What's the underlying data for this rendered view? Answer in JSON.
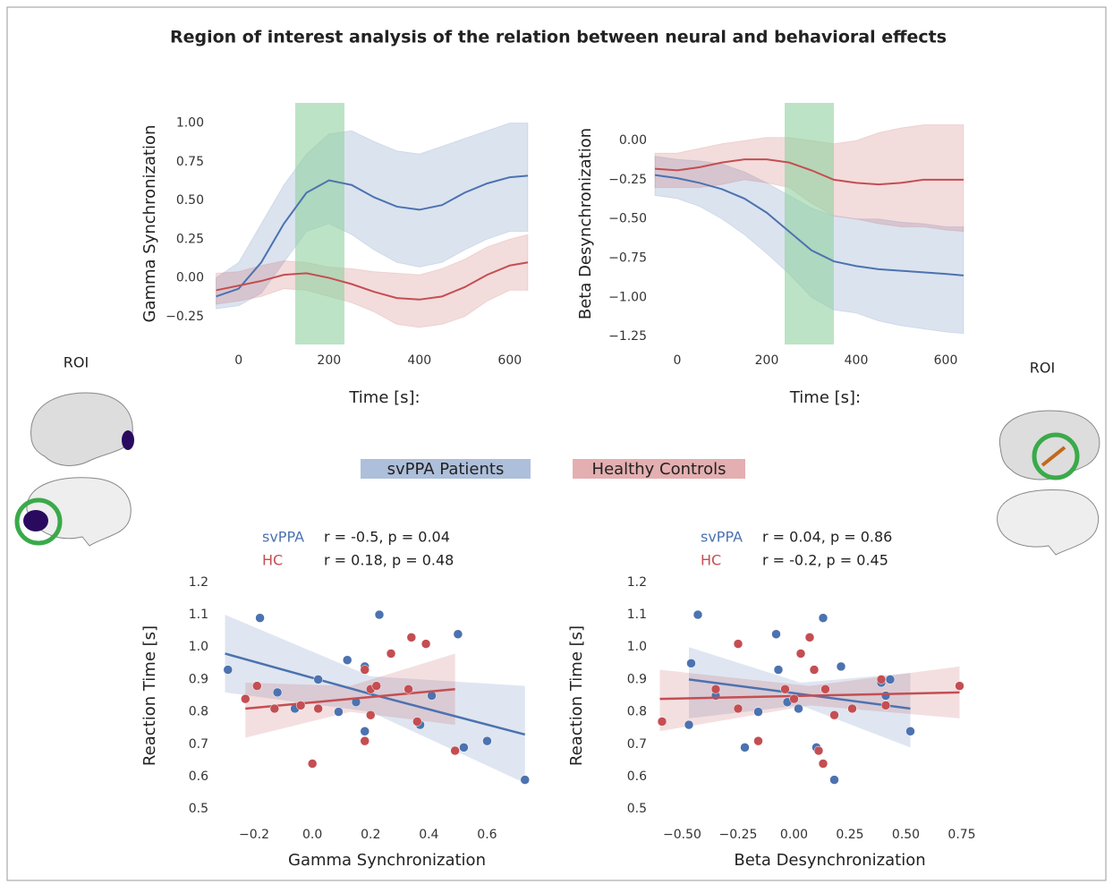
{
  "title": "Region of interest analysis of the relation between neural and behavioral effects",
  "roi_labels": [
    "ROI",
    "ROI"
  ],
  "chart_data": [
    {
      "type": "line",
      "xlabel": "Time [s]:",
      "ylabel": "Gamma Synchronization",
      "xlim": [
        -53,
        640
      ],
      "ylim": [
        -0.43,
        1.13
      ],
      "xticks": [
        0,
        200,
        400,
        600
      ],
      "yticks": [
        {
          "value": 1,
          "label": "1.00"
        },
        {
          "value": 0.75,
          "label": "0.75"
        },
        {
          "value": 0.5,
          "label": "0.50"
        },
        {
          "value": 0.25,
          "label": "0.25"
        },
        {
          "value": 0,
          "label": "0.00"
        },
        {
          "value": -0.25,
          "label": "−0.25"
        }
      ],
      "highlight": [
        125,
        234
      ],
      "highlight_color": "#8fd19e",
      "x": [
        -50,
        0,
        50,
        100,
        150,
        200,
        250,
        300,
        350,
        400,
        450,
        500,
        550,
        600,
        640
      ],
      "series": [
        {
          "name": "svPPA Patients",
          "color": "#4c72b0",
          "values": [
            -0.12,
            -0.07,
            0.1,
            0.35,
            0.55,
            0.63,
            0.6,
            0.52,
            0.46,
            0.44,
            0.47,
            0.55,
            0.61,
            0.65,
            0.66
          ],
          "upper": [
            0.0,
            0.1,
            0.35,
            0.6,
            0.8,
            0.93,
            0.95,
            0.88,
            0.82,
            0.8,
            0.85,
            0.9,
            0.95,
            1.0,
            1.0
          ],
          "lower": [
            -0.2,
            -0.18,
            -0.1,
            0.1,
            0.3,
            0.35,
            0.28,
            0.18,
            0.1,
            0.07,
            0.1,
            0.18,
            0.25,
            0.3,
            0.3
          ]
        },
        {
          "name": "Healthy Controls",
          "color": "#c44e52",
          "values": [
            -0.08,
            -0.05,
            -0.02,
            0.02,
            0.03,
            0.0,
            -0.04,
            -0.09,
            -0.13,
            -0.14,
            -0.12,
            -0.06,
            0.02,
            0.08,
            0.1
          ],
          "upper": [
            0.03,
            0.04,
            0.08,
            0.11,
            0.1,
            0.07,
            0.06,
            0.04,
            0.03,
            0.02,
            0.06,
            0.12,
            0.2,
            0.25,
            0.28
          ],
          "lower": [
            -0.17,
            -0.15,
            -0.12,
            -0.07,
            -0.08,
            -0.12,
            -0.16,
            -0.22,
            -0.3,
            -0.32,
            -0.3,
            -0.25,
            -0.15,
            -0.08,
            -0.08
          ]
        }
      ]
    },
    {
      "type": "line",
      "xlabel": "Time [s]:",
      "ylabel": "Beta Desynchronization",
      "xlim": [
        -44,
        646
      ],
      "ylim": [
        -1.3,
        0.24
      ],
      "xticks": [
        0,
        200,
        400,
        600
      ],
      "yticks": [
        {
          "value": 0,
          "label": "0.00"
        },
        {
          "value": -0.25,
          "label": "−0.25"
        },
        {
          "value": -0.5,
          "label": "−0.50"
        },
        {
          "value": -0.75,
          "label": "−0.75"
        },
        {
          "value": -1,
          "label": "−1.00"
        },
        {
          "value": -1.25,
          "label": "−1.25"
        }
      ],
      "highlight": [
        240,
        350
      ],
      "highlight_color": "#8fd19e",
      "x": [
        -50,
        0,
        50,
        100,
        150,
        200,
        250,
        300,
        350,
        400,
        450,
        500,
        550,
        600,
        640
      ],
      "series": [
        {
          "color": "#4c72b0",
          "values": [
            -0.22,
            -0.24,
            -0.27,
            -0.31,
            -0.37,
            -0.46,
            -0.58,
            -0.7,
            -0.77,
            -0.8,
            -0.82,
            -0.83,
            -0.84,
            -0.85,
            -0.86
          ],
          "upper": [
            -0.1,
            -0.12,
            -0.13,
            -0.15,
            -0.2,
            -0.27,
            -0.35,
            -0.43,
            -0.48,
            -0.5,
            -0.5,
            -0.52,
            -0.53,
            -0.55,
            -0.55
          ],
          "lower": [
            -0.35,
            -0.37,
            -0.42,
            -0.5,
            -0.6,
            -0.72,
            -0.85,
            -1.0,
            -1.08,
            -1.1,
            -1.15,
            -1.18,
            -1.2,
            -1.22,
            -1.23
          ]
        },
        {
          "color": "#c44e52",
          "values": [
            -0.18,
            -0.19,
            -0.17,
            -0.14,
            -0.12,
            -0.12,
            -0.14,
            -0.19,
            -0.25,
            -0.27,
            -0.28,
            -0.27,
            -0.25,
            -0.25,
            -0.25
          ],
          "upper": [
            -0.08,
            -0.08,
            -0.05,
            -0.02,
            0.0,
            0.02,
            0.02,
            0.0,
            -0.02,
            0.0,
            0.05,
            0.08,
            0.1,
            0.1,
            0.1
          ],
          "lower": [
            -0.3,
            -0.3,
            -0.3,
            -0.28,
            -0.25,
            -0.27,
            -0.3,
            -0.4,
            -0.48,
            -0.5,
            -0.53,
            -0.55,
            -0.55,
            -0.57,
            -0.58
          ]
        }
      ]
    },
    {
      "type": "scatter",
      "xlabel": "Gamma Synchronization",
      "ylabel": "Reaction Time [s]",
      "xlim": [
        -0.32,
        0.74
      ],
      "ylim": [
        0.47,
        1.23
      ],
      "xticks": [
        {
          "value": -0.2,
          "label": "−0.2"
        },
        {
          "value": 0,
          "label": "0.0"
        },
        0.2,
        0.4,
        0.6
      ],
      "yticks": [
        1.2,
        1.1,
        {
          "value": 1,
          "label": "1.0"
        },
        0.9,
        0.8,
        0.7,
        0.6,
        0.5
      ],
      "stats": [
        {
          "group": "svPPA",
          "text": "r = -0.5, p = 0.04"
        },
        {
          "group": "HC",
          "text": "r = 0.18, p = 0.48"
        }
      ],
      "series": [
        {
          "color": "#4c72b0",
          "x": [
            -0.29,
            -0.18,
            -0.12,
            -0.06,
            0.02,
            0.09,
            0.12,
            0.15,
            0.18,
            0.18,
            0.23,
            0.37,
            0.41,
            0.5,
            0.52,
            0.6,
            0.73
          ],
          "values": [
            0.93,
            1.09,
            0.86,
            0.81,
            0.9,
            0.8,
            0.96,
            0.83,
            0.94,
            0.74,
            1.1,
            0.76,
            0.85,
            1.04,
            0.69,
            0.71,
            0.59
          ],
          "fit": {
            "x": [
              -0.3,
              0.2,
              0.73
            ],
            "values": [
              0.98,
              0.855,
              0.73
            ],
            "lower": [
              0.86,
              0.8,
              0.58
            ],
            "upper": [
              1.1,
              0.91,
              0.88
            ]
          }
        },
        {
          "color": "#c44e52",
          "x": [
            -0.23,
            -0.19,
            -0.13,
            -0.04,
            0.02,
            0.0,
            0.18,
            0.18,
            0.2,
            0.22,
            0.2,
            0.27,
            0.33,
            0.34,
            0.36,
            0.39,
            0.49
          ],
          "values": [
            0.84,
            0.88,
            0.81,
            0.82,
            0.81,
            0.64,
            0.71,
            0.93,
            0.87,
            0.88,
            0.79,
            0.98,
            0.87,
            1.03,
            0.77,
            1.01,
            0.68
          ],
          "fit": {
            "x": [
              -0.23,
              0.13,
              0.49
            ],
            "values": [
              0.81,
              0.84,
              0.87
            ],
            "lower": [
              0.72,
              0.8,
              0.76
            ],
            "upper": [
              0.89,
              0.88,
              0.98
            ]
          }
        }
      ]
    },
    {
      "type": "scatter",
      "xlabel": "Beta Desynchronization",
      "ylabel": "Reaction Time [s]",
      "xlim": [
        -0.61,
        0.81
      ],
      "ylim": [
        0.47,
        1.23
      ],
      "xticks": [
        {
          "value": -0.5,
          "label": "−0.50"
        },
        {
          "value": -0.25,
          "label": "−0.25"
        },
        {
          "value": 0,
          "label": "0.00"
        },
        {
          "value": 0.25,
          "label": "0.25"
        },
        {
          "value": 0.5,
          "label": "0.50"
        },
        {
          "value": 0.75,
          "label": "0.75"
        }
      ],
      "yticks": [
        1.2,
        1.1,
        {
          "value": 1,
          "label": "1.0"
        },
        0.9,
        0.8,
        0.7,
        0.6,
        0.5
      ],
      "stats": [
        {
          "group": "svPPA",
          "text": "r = 0.04, p = 0.86"
        },
        {
          "group": "HC",
          "text": "r = -0.2, p = 0.45"
        }
      ],
      "series": [
        {
          "color": "#4c72b0",
          "x": [
            -0.46,
            -0.43,
            -0.47,
            -0.35,
            -0.22,
            -0.16,
            -0.08,
            -0.07,
            -0.03,
            0.02,
            0.1,
            0.13,
            0.18,
            0.21,
            0.39,
            0.43,
            0.41,
            0.52
          ],
          "values": [
            0.95,
            1.1,
            0.76,
            0.85,
            0.69,
            0.8,
            1.04,
            0.93,
            0.83,
            0.81,
            0.69,
            1.09,
            0.59,
            0.94,
            0.89,
            0.9,
            0.85,
            0.74
          ],
          "fit": {
            "x": [
              -0.47,
              0.03,
              0.52
            ],
            "values": [
              0.9,
              0.855,
              0.81
            ],
            "lower": [
              0.78,
              0.82,
              0.69
            ],
            "upper": [
              1.0,
              0.89,
              0.92
            ]
          }
        },
        {
          "color": "#c44e52",
          "x": [
            -0.59,
            -0.35,
            -0.25,
            -0.25,
            -0.16,
            -0.04,
            0.0,
            0.03,
            0.07,
            0.09,
            0.11,
            0.13,
            0.14,
            0.18,
            0.26,
            0.39,
            0.41,
            0.74
          ],
          "values": [
            0.77,
            0.87,
            1.01,
            0.81,
            0.71,
            0.87,
            0.84,
            0.98,
            1.03,
            0.93,
            0.68,
            0.64,
            0.87,
            0.79,
            0.81,
            0.9,
            0.82,
            0.88
          ],
          "fit": {
            "x": [
              -0.6,
              0.07,
              0.74
            ],
            "values": [
              0.84,
              0.85,
              0.86
            ],
            "lower": [
              0.74,
              0.82,
              0.78
            ],
            "upper": [
              0.93,
              0.88,
              0.94
            ]
          }
        }
      ]
    }
  ]
}
